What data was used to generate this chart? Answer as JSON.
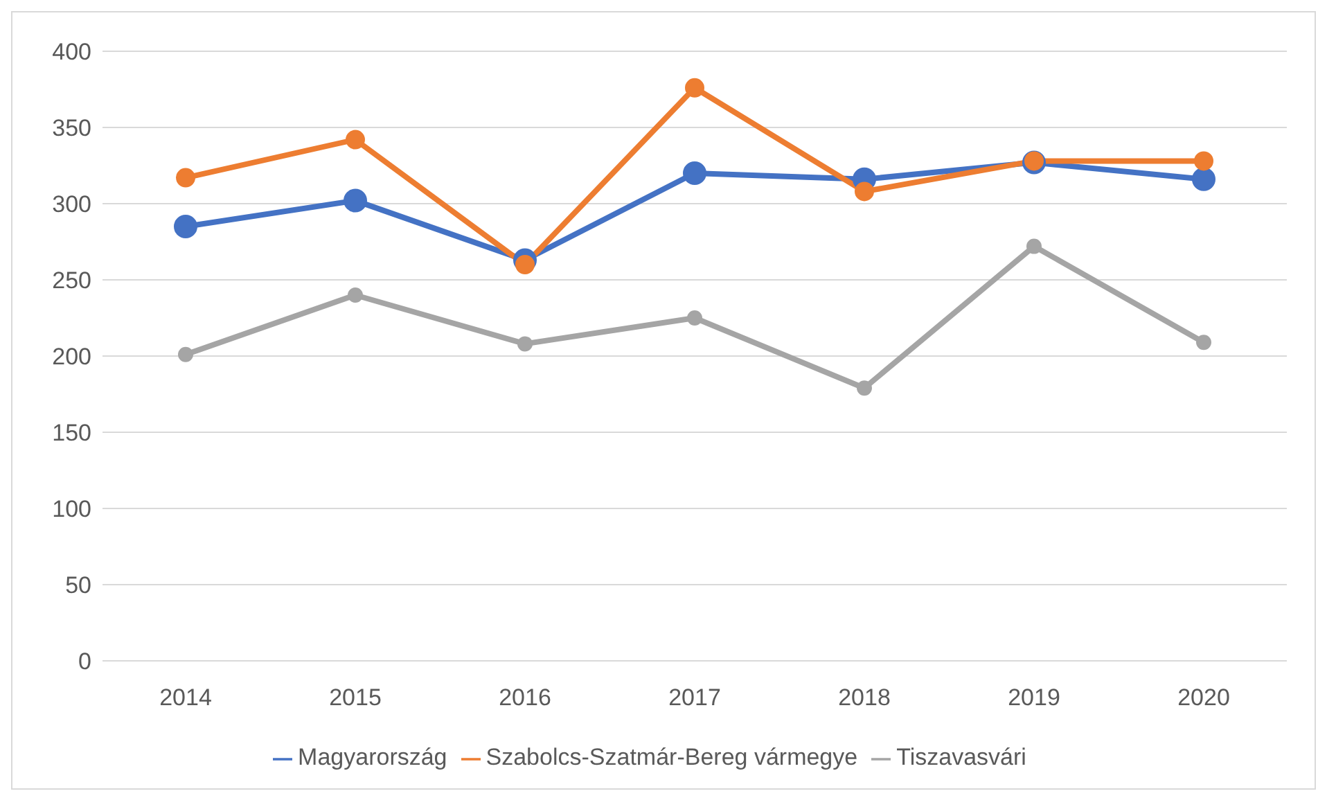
{
  "chart_data": {
    "type": "line",
    "categories": [
      "2014",
      "2015",
      "2016",
      "2017",
      "2018",
      "2019",
      "2020"
    ],
    "series": [
      {
        "name": "Magyarország",
        "color": "#4472c4",
        "values": [
          285,
          302,
          263,
          320,
          316,
          327,
          316
        ]
      },
      {
        "name": "Szabolcs-Szatmár-Bereg vármegye",
        "color": "#ed7d31",
        "values": [
          317,
          342,
          260,
          376,
          308,
          328,
          328
        ]
      },
      {
        "name": "Tiszavasvári",
        "color": "#a5a5a5",
        "values": [
          201,
          240,
          208,
          225,
          179,
          272,
          209
        ]
      }
    ],
    "ylim": [
      0,
      400
    ],
    "yticks": [
      0,
      50,
      100,
      150,
      200,
      250,
      300,
      350,
      400
    ],
    "grid": "y",
    "legend": "bottom",
    "marker": "circle",
    "line_style": "solid"
  }
}
